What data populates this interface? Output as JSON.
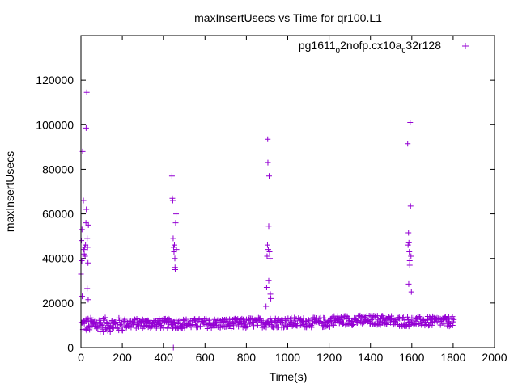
{
  "chart_data": {
    "type": "scatter",
    "title": "maxInsertUsecs vs Time for qr100.L1",
    "xlabel": "Time(s)",
    "ylabel": "maxInsertUsecs",
    "xlim": [
      0,
      2000
    ],
    "ylim": [
      0,
      140000
    ],
    "xticks": [
      0,
      200,
      400,
      600,
      800,
      1000,
      1200,
      1400,
      1600,
      1800,
      2000
    ],
    "yticks": [
      0,
      20000,
      40000,
      60000,
      80000,
      100000,
      120000
    ],
    "grid": false,
    "legend": {
      "position": "top-right",
      "label_parts": {
        "main": "pg1611",
        "sub1": "o",
        "mid": "2nofp.cx10a",
        "sub2": "c",
        "end": "32r128"
      }
    },
    "series": [
      {
        "name": "pg1611_o2nofp.cx10a_c32r128",
        "color": "#9400d3",
        "marker": "+",
        "baseline": {
          "x_start": 0,
          "x_end": 1800,
          "x_step": 5,
          "segments": [
            {
              "x": [
                0,
                200
              ],
              "y_min": 7000,
              "y_max": 13500
            },
            {
              "x": [
                200,
                800
              ],
              "y_min": 8500,
              "y_max": 13000
            },
            {
              "x": [
                800,
                1200
              ],
              "y_min": 9000,
              "y_max": 13500
            },
            {
              "x": [
                1200,
                1500
              ],
              "y_min": 10000,
              "y_max": 14500
            },
            {
              "x": [
                1500,
                1800
              ],
              "y_min": 9500,
              "y_max": 14000
            }
          ]
        },
        "points": [
          {
            "x": 0,
            "y": 33000
          },
          {
            "x": 2,
            "y": 48000
          },
          {
            "x": 4,
            "y": 39000
          },
          {
            "x": 5,
            "y": 53000
          },
          {
            "x": 6,
            "y": 23000
          },
          {
            "x": 8,
            "y": 88000
          },
          {
            "x": 10,
            "y": 64000
          },
          {
            "x": 12,
            "y": 66000
          },
          {
            "x": 14,
            "y": 44000
          },
          {
            "x": 16,
            "y": 42000
          },
          {
            "x": 18,
            "y": 45000
          },
          {
            "x": 20,
            "y": 41000
          },
          {
            "x": 22,
            "y": 46000
          },
          {
            "x": 24,
            "y": 56000
          },
          {
            "x": 25,
            "y": 98500
          },
          {
            "x": 26,
            "y": 62000
          },
          {
            "x": 28,
            "y": 114500
          },
          {
            "x": 30,
            "y": 49000
          },
          {
            "x": 30,
            "y": 26500
          },
          {
            "x": 32,
            "y": 45000
          },
          {
            "x": 34,
            "y": 38000
          },
          {
            "x": 35,
            "y": 21500
          },
          {
            "x": 36,
            "y": 55000
          },
          {
            "x": 440,
            "y": 77000
          },
          {
            "x": 442,
            "y": 67000
          },
          {
            "x": 444,
            "y": 66000
          },
          {
            "x": 446,
            "y": 49000
          },
          {
            "x": 448,
            "y": 45000
          },
          {
            "x": 450,
            "y": 43000
          },
          {
            "x": 452,
            "y": 46000
          },
          {
            "x": 454,
            "y": 40000
          },
          {
            "x": 455,
            "y": 36000
          },
          {
            "x": 456,
            "y": 35000
          },
          {
            "x": 458,
            "y": 56000
          },
          {
            "x": 460,
            "y": 60000
          },
          {
            "x": 462,
            "y": 44000
          },
          {
            "x": 447,
            "y": 0
          },
          {
            "x": 895,
            "y": 18500
          },
          {
            "x": 898,
            "y": 27000
          },
          {
            "x": 900,
            "y": 41000
          },
          {
            "x": 902,
            "y": 46000
          },
          {
            "x": 903,
            "y": 93500
          },
          {
            "x": 904,
            "y": 83000
          },
          {
            "x": 906,
            "y": 44000
          },
          {
            "x": 908,
            "y": 54500
          },
          {
            "x": 908,
            "y": 30000
          },
          {
            "x": 910,
            "y": 77000
          },
          {
            "x": 912,
            "y": 43000
          },
          {
            "x": 914,
            "y": 40000
          },
          {
            "x": 916,
            "y": 24000
          },
          {
            "x": 918,
            "y": 22000
          },
          {
            "x": 1580,
            "y": 91500
          },
          {
            "x": 1582,
            "y": 46000
          },
          {
            "x": 1584,
            "y": 51500
          },
          {
            "x": 1586,
            "y": 47000
          },
          {
            "x": 1588,
            "y": 43000
          },
          {
            "x": 1590,
            "y": 37000
          },
          {
            "x": 1592,
            "y": 101000
          },
          {
            "x": 1594,
            "y": 63500
          },
          {
            "x": 1596,
            "y": 41000
          },
          {
            "x": 1598,
            "y": 25000
          },
          {
            "x": 1585,
            "y": 28500
          },
          {
            "x": 1590,
            "y": 39000
          }
        ]
      }
    ]
  }
}
